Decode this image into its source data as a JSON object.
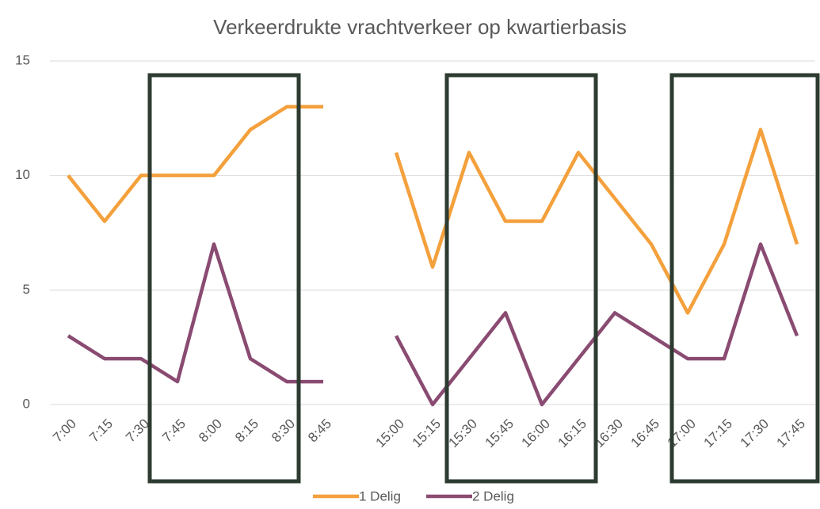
{
  "chart_data": {
    "type": "line",
    "title": "Verkeerdrukte vrachtverkeer op kwartierbasis",
    "categories": [
      "7:00",
      "7:15",
      "7:30",
      "7:45",
      "8:00",
      "8:15",
      "8:30",
      "8:45",
      null,
      "15:00",
      "15:15",
      "15:30",
      "15:45",
      "16:00",
      "16:15",
      "16:30",
      "16:45",
      "17:00",
      "17:15",
      "17:30",
      "17:45"
    ],
    "series": [
      {
        "name": "1 Delig",
        "color": "#f4a03c",
        "values": [
          10,
          8,
          10,
          10,
          10,
          12,
          13,
          13,
          null,
          11,
          6,
          11,
          8,
          8,
          11,
          9,
          7,
          4,
          7,
          12,
          7
        ]
      },
      {
        "name": "2 Delig",
        "color": "#8a4b72",
        "values": [
          3,
          2,
          2,
          1,
          7,
          2,
          1,
          1,
          null,
          3,
          0,
          2,
          4,
          0,
          2,
          4,
          3,
          2,
          2,
          7,
          3
        ]
      }
    ],
    "ylim": [
      0,
      15
    ],
    "yticks": [
      0,
      5,
      10,
      15
    ],
    "grid": true,
    "legend": "bottom"
  }
}
